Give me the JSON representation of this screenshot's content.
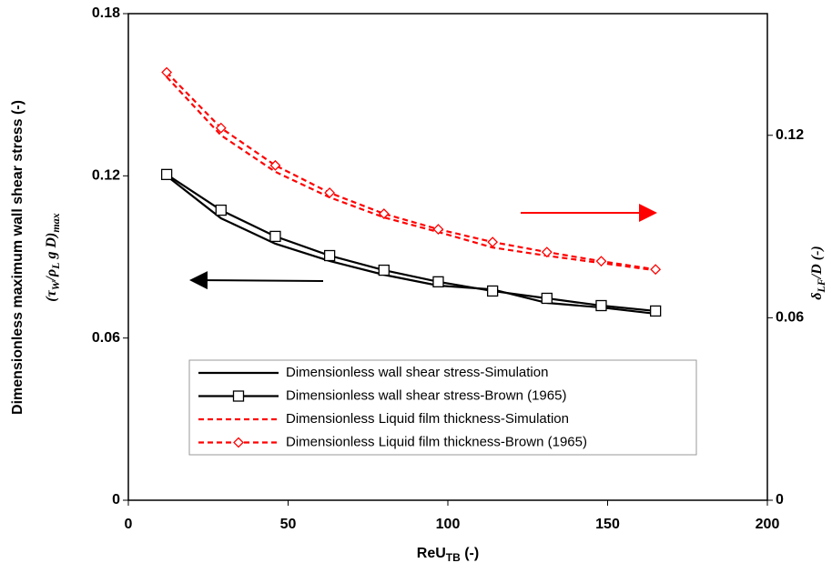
{
  "chart_data": {
    "type": "line",
    "x_label": [
      "ReU",
      "TB",
      " (-)"
    ],
    "y_label": [
      "Dimensionless  maximum wall shear stress (-)",
      "(τ",
      "W",
      "/ρ",
      "L",
      " g D)",
      "max"
    ],
    "y2_label": [
      "δ",
      "LF",
      "/D (-)"
    ],
    "x": [
      12,
      29,
      46,
      63,
      80,
      97,
      114,
      131,
      148,
      165
    ],
    "xlim": [
      0,
      200
    ],
    "xticks": [
      0,
      50,
      100,
      150,
      200
    ],
    "ylim": [
      0,
      0.18
    ],
    "yticks": [
      0,
      0.06,
      0.12,
      0.18
    ],
    "y2lim": [
      0,
      0.16
    ],
    "y2ticks": [
      0,
      0.06,
      0.12
    ],
    "grid": false,
    "legend": "bottom",
    "series": [
      {
        "name": "Dimensionless wall shear stress-Simulation",
        "color": "#000000",
        "dash": "solid",
        "marker": "none",
        "values": [
          0.12,
          0.1043,
          0.0949,
          0.0885,
          0.0834,
          0.0794,
          0.078,
          0.073,
          0.0713,
          0.069
        ]
      },
      {
        "name": "Dimensionless wall shear stress-Brown (1965)",
        "color": "#000000",
        "dash": "solid",
        "marker": "square",
        "values": [
          0.1205,
          0.1073,
          0.0976,
          0.0905,
          0.0851,
          0.0808,
          0.0774,
          0.0747,
          0.072,
          0.07
        ]
      },
      {
        "name": "Dimensionless Liquid film thickness-Simulation",
        "color": "#ff0000",
        "dash": "dashed",
        "marker": "none",
        "axis": "y2",
        "values": [
          0.1392,
          0.12,
          0.108,
          0.0996,
          0.093,
          0.0882,
          0.0831,
          0.0804,
          0.078,
          0.0756
        ]
      },
      {
        "name": "Dimensionless Liquid film thickness-Brown (1965)",
        "color": "#ff0000",
        "dash": "dashed",
        "marker": "diamond",
        "axis": "y2",
        "values": [
          0.1407,
          0.1224,
          0.1101,
          0.1011,
          0.0942,
          0.0891,
          0.0849,
          0.0816,
          0.0786,
          0.0759
        ]
      }
    ]
  }
}
